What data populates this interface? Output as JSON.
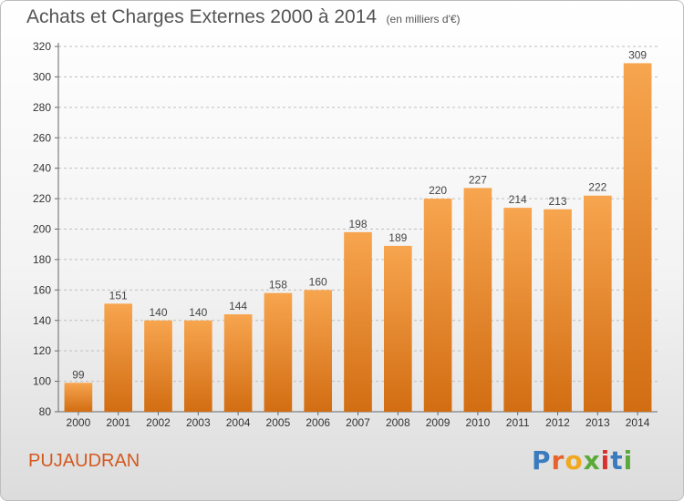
{
  "header": {
    "title": "Achats et Charges Externes 2000 à 2014",
    "subtitle": "(en milliers d'€)"
  },
  "footer": {
    "place": "PUJAUDRAN",
    "logo": "Proxiti"
  },
  "colors": {
    "bar_light": "#f7a54f",
    "bar_dark": "#d26d12",
    "place": "#d3591f",
    "logo": [
      "#3a7bbf",
      "#e8632b",
      "#f0a81e",
      "#5aaa3a",
      "#d8322e",
      "#3a7bbf",
      "#5aaa3a"
    ]
  },
  "chart_data": {
    "type": "bar",
    "title": "Achats et Charges Externes 2000 à 2014",
    "subtitle": "(en milliers d'€)",
    "categories": [
      "2000",
      "2001",
      "2002",
      "2003",
      "2004",
      "2005",
      "2006",
      "2007",
      "2008",
      "2009",
      "2010",
      "2011",
      "2012",
      "2013",
      "2014"
    ],
    "values": [
      99,
      151,
      140,
      140,
      144,
      158,
      160,
      198,
      189,
      220,
      227,
      214,
      213,
      222,
      309
    ],
    "ylim": [
      80,
      320
    ],
    "yticks": [
      80,
      100,
      120,
      140,
      160,
      180,
      200,
      220,
      240,
      260,
      280,
      300,
      320
    ],
    "grid": true
  }
}
